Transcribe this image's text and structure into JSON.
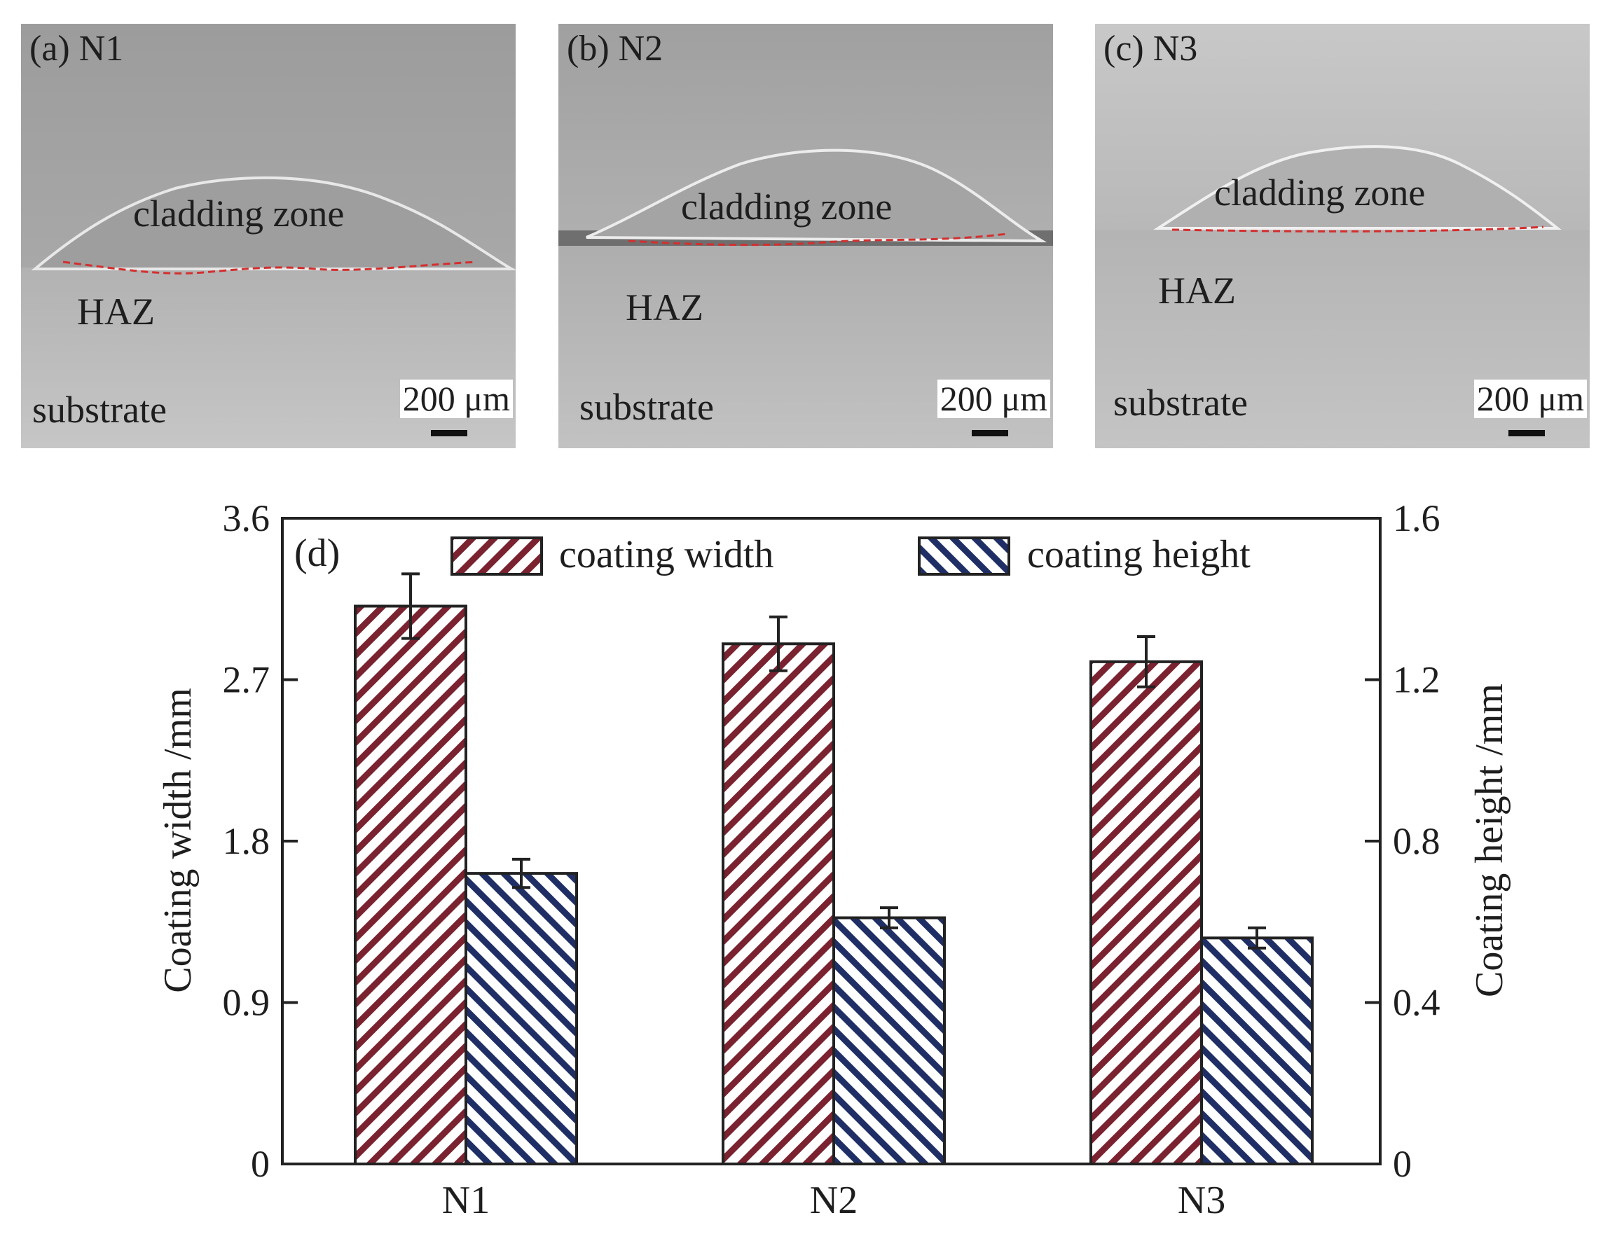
{
  "panels": [
    {
      "label": "(a) N1",
      "cladding": "cladding zone",
      "haz": "HAZ",
      "substrate": "substrate",
      "scale": "200 μm"
    },
    {
      "label": "(b) N2",
      "cladding": "cladding zone",
      "haz": "HAZ",
      "substrate": "substrate",
      "scale": "200 μm"
    },
    {
      "label": "(c) N3",
      "cladding": "cladding zone",
      "haz": "HAZ",
      "substrate": "substrate",
      "scale": "200 μm"
    }
  ],
  "colors": {
    "width": "#7a2230",
    "height": "#1f2f66",
    "fusion_line": "#d32f2f",
    "micrograph": "#a9a9a9"
  },
  "chart_data": {
    "type": "bar",
    "panel_label": "(d)",
    "categories": [
      "N1",
      "N2",
      "N3"
    ],
    "series": [
      {
        "name": "coating width",
        "axis": "left",
        "values": [
          3.11,
          2.9,
          2.8
        ],
        "errors": [
          0.18,
          0.15,
          0.14
        ]
      },
      {
        "name": "coating height",
        "axis": "right",
        "values": [
          0.72,
          0.61,
          0.56
        ],
        "errors": [
          0.035,
          0.025,
          0.025
        ]
      }
    ],
    "ylabel_left": "Coating width /mm",
    "ylabel_right": "Coating height /mm",
    "ylim_left": [
      0,
      3.6
    ],
    "ylim_right": [
      0,
      1.6
    ],
    "yticks_left": [
      "0",
      "0.9",
      "1.8",
      "2.7",
      "3.6"
    ],
    "yticks_right": [
      "0",
      "0.4",
      "0.8",
      "1.2",
      "1.6"
    ],
    "legend_position": "top",
    "grid": false
  }
}
